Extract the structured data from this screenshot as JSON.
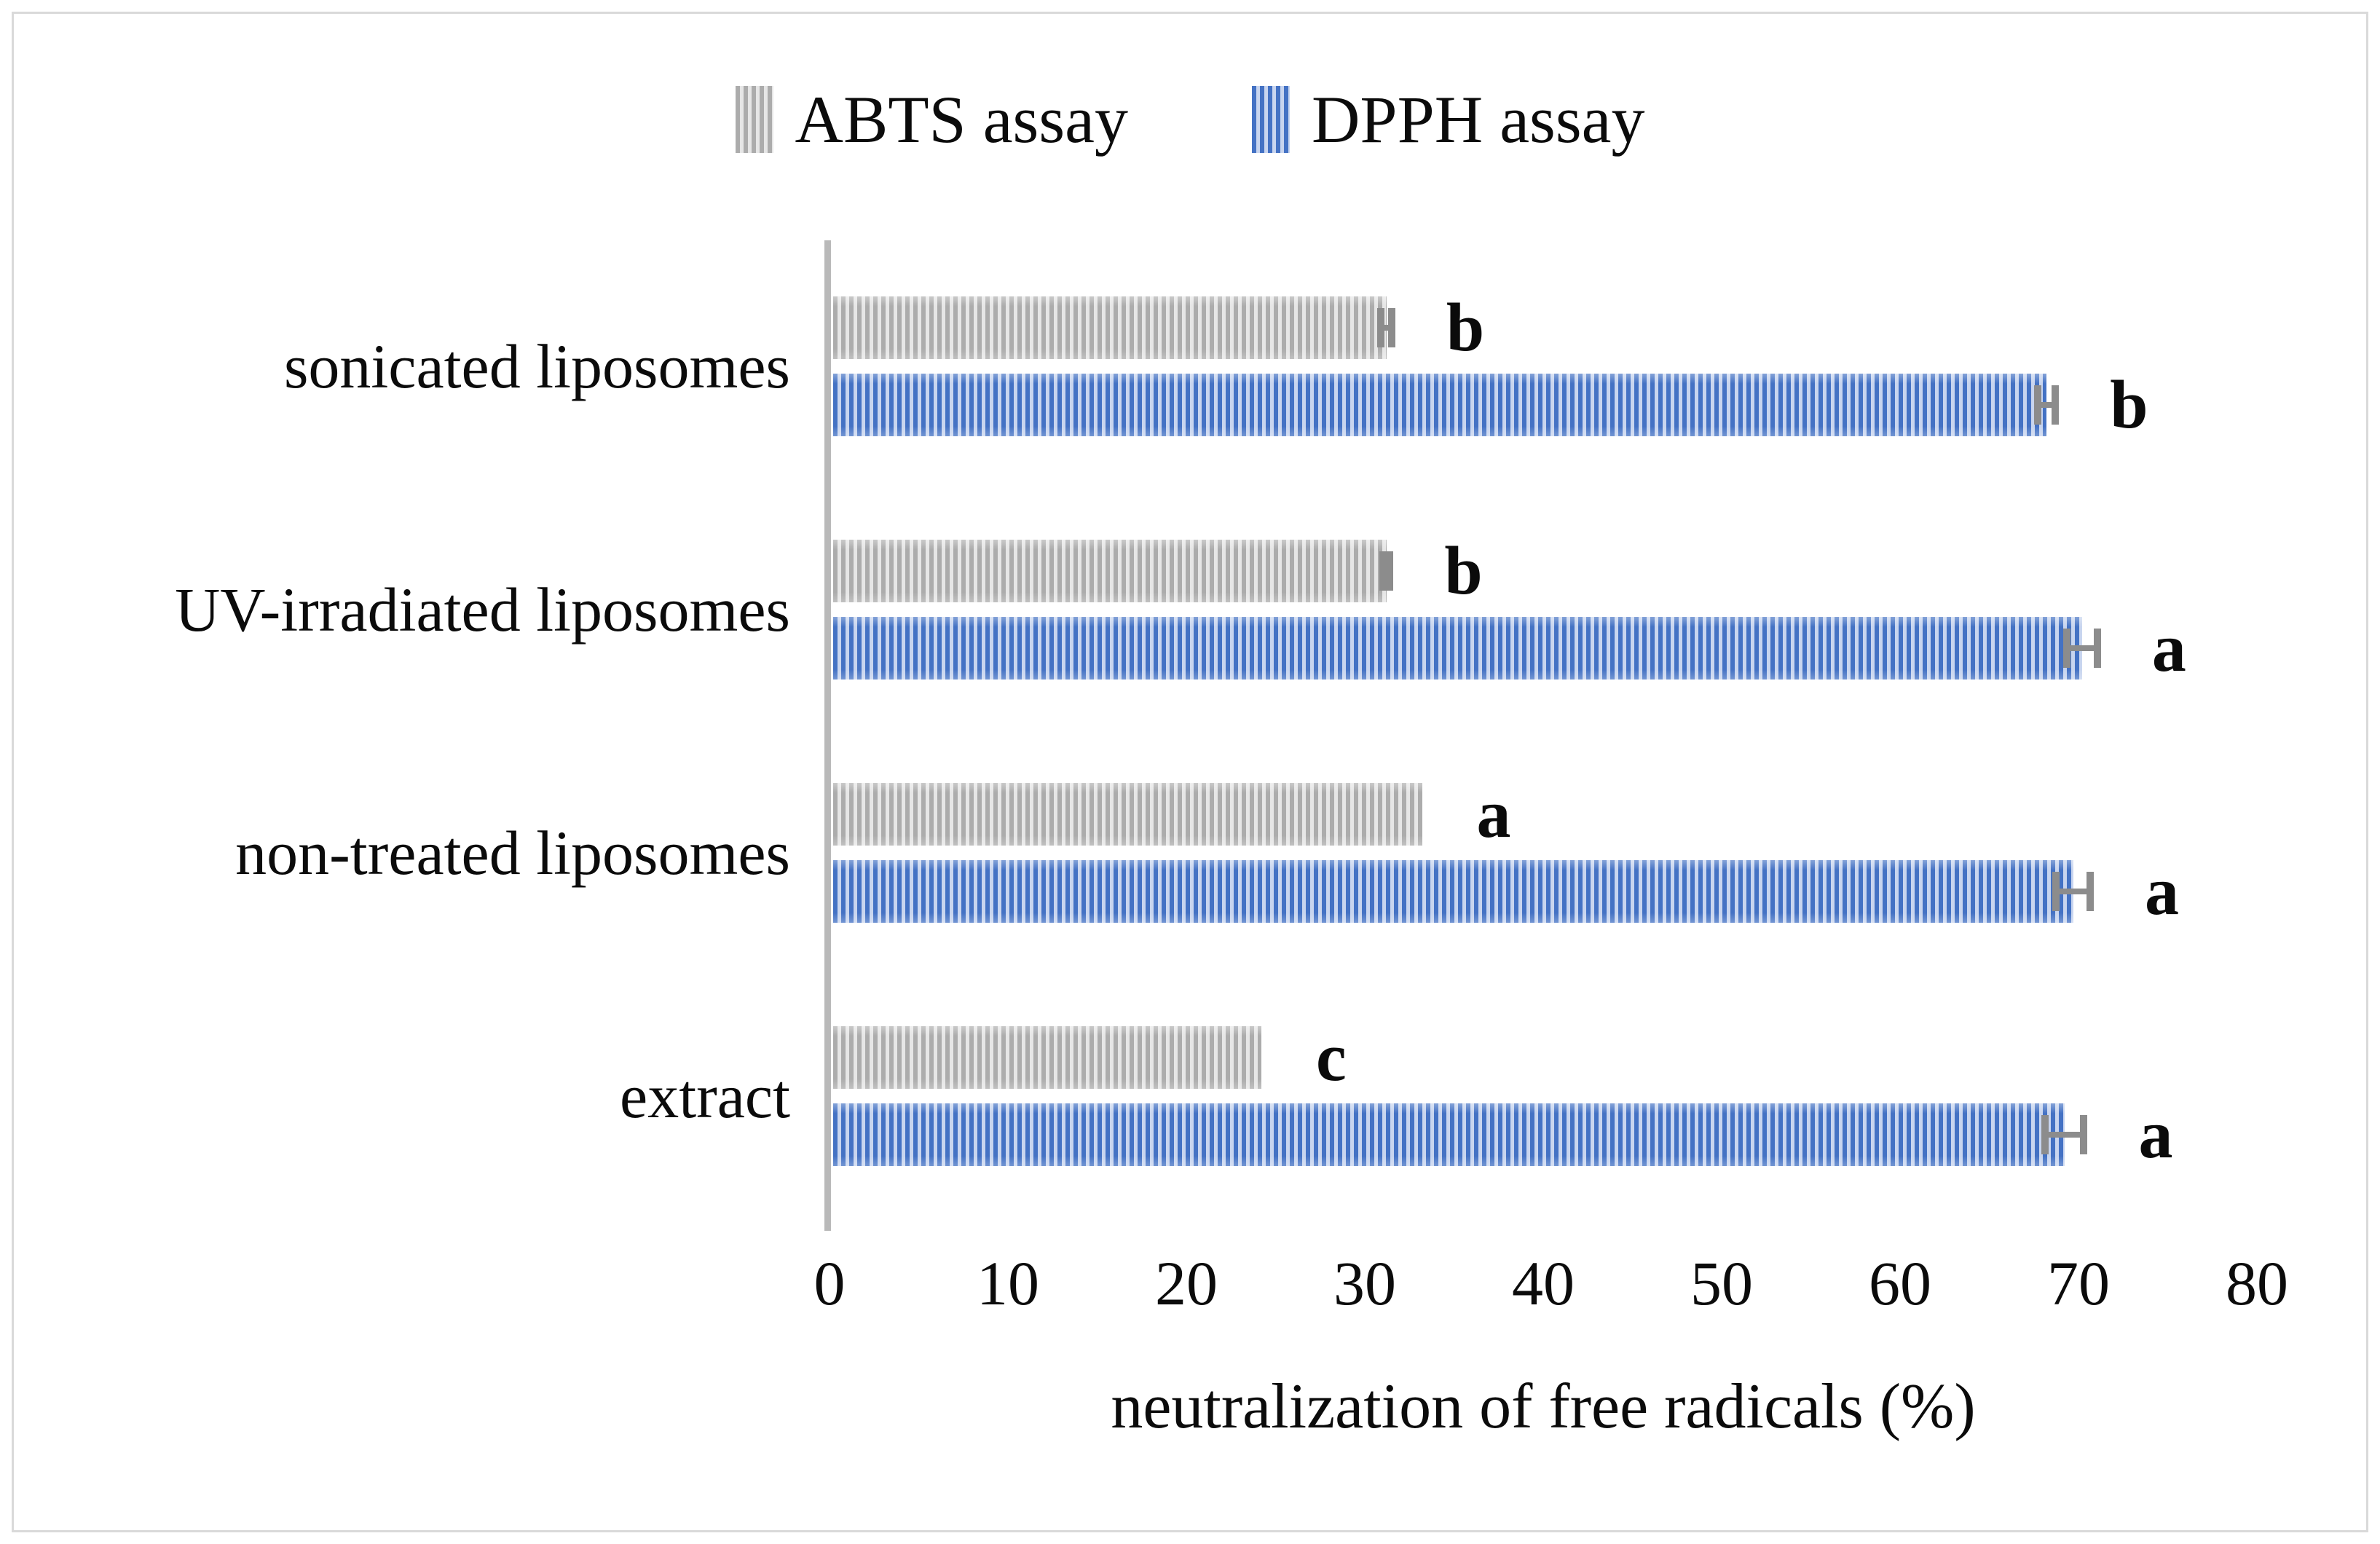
{
  "legend": {
    "items": [
      {
        "label": "ABTS assay",
        "stripe_dark": "#acacac",
        "stripe_light": "#e6e6e6"
      },
      {
        "label": "DPPH assay",
        "stripe_dark": "#4472c4",
        "stripe_light": "#c8d5ef"
      }
    ]
  },
  "colors": {
    "axis_line": "#b9b9b9",
    "error_bar": "#8c8c8c",
    "frame_border": "#d9d9d9",
    "text": "#0b0b0b"
  },
  "chart_data": {
    "type": "bar",
    "orientation": "horizontal",
    "title": "",
    "xlabel": "neutralization of free radicals (%)",
    "ylabel": "",
    "xlim": [
      0,
      80
    ],
    "xticks": [
      0,
      10,
      20,
      30,
      40,
      50,
      60,
      70,
      80
    ],
    "grid": false,
    "legend_position": "top-center",
    "categories": [
      "sonicated liposomes",
      "UV-irradiated liposomes",
      "non-treated liposomes",
      "extract"
    ],
    "series": [
      {
        "name": "ABTS assay",
        "values": [
          31,
          31,
          33,
          24
        ],
        "errors": [
          0.3,
          0.2,
          0,
          0
        ],
        "sig_letters": [
          "b",
          "b",
          "a",
          "c"
        ]
      },
      {
        "name": "DPPH assay",
        "values": [
          68,
          70,
          69.5,
          69
        ],
        "errors": [
          0.5,
          0.85,
          0.95,
          1.1
        ],
        "sig_letters": [
          "b",
          "a",
          "a",
          "a"
        ]
      }
    ]
  }
}
